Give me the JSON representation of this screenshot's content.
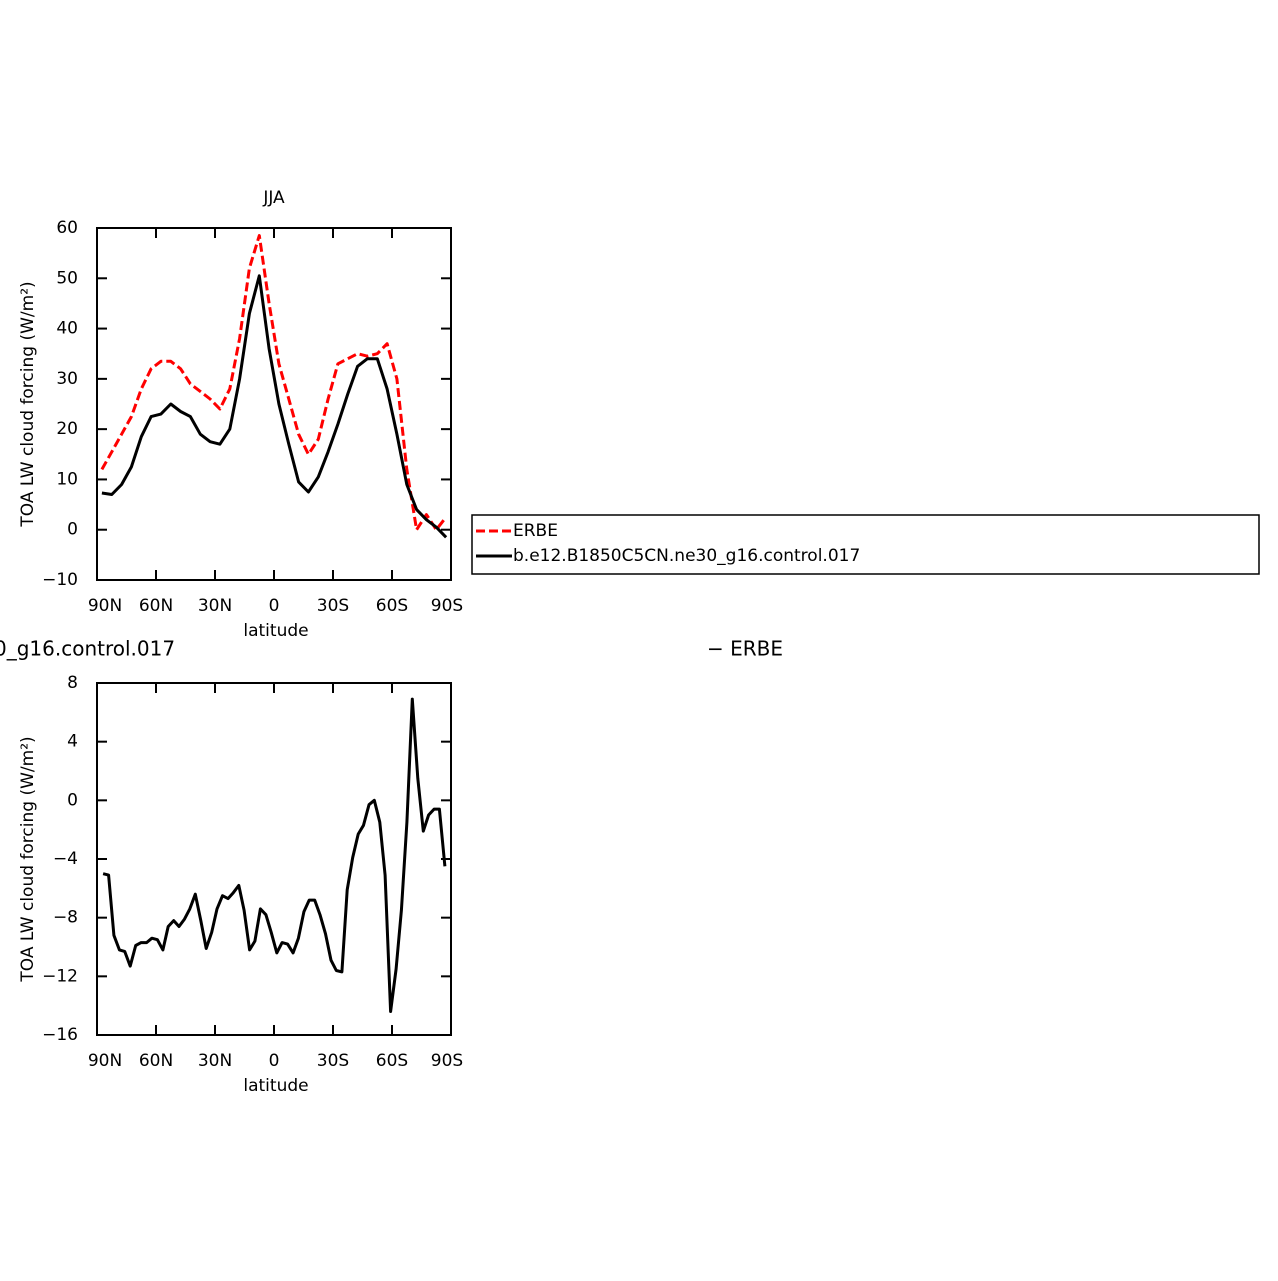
{
  "chart_data": [
    {
      "type": "line",
      "title": "JJA",
      "xlabel": "latitude",
      "ylabel": "TOA LW cloud forcing (W/m²)",
      "x": [
        87.5,
        82.5,
        77.5,
        72.5,
        67.5,
        62.5,
        57.5,
        52.5,
        47.5,
        42.5,
        37.5,
        32.5,
        27.5,
        22.5,
        17.5,
        12.5,
        7.5,
        2.5,
        -2.5,
        -7.5,
        -12.5,
        -17.5,
        -22.5,
        -27.5,
        -32.5,
        -37.5,
        -42.5,
        -47.5,
        -52.5,
        -57.5,
        -62.5,
        -67.5,
        -72.5,
        -77.5,
        -82.5,
        -87.5
      ],
      "series": [
        {
          "name": "ERBE",
          "color": "#ff0000",
          "dash": true,
          "values": [
            12,
            15.5,
            19,
            22.5,
            28,
            32,
            33.5,
            33.5,
            32,
            29,
            27.5,
            26,
            24,
            28,
            38,
            52,
            58.5,
            45,
            33,
            26,
            19,
            15,
            18,
            26,
            33,
            34,
            35,
            34.5,
            35,
            37,
            30,
            12,
            0,
            3,
            0,
            2.5
          ]
        },
        {
          "name": "b.e12.B1850C5CN.ne30_g16.control.017",
          "color": "#000000",
          "dash": false,
          "values": [
            7.3,
            7,
            9,
            12.5,
            18.5,
            22.5,
            23,
            25,
            23.5,
            22.5,
            19,
            17.5,
            17,
            20,
            30,
            43,
            50.5,
            36,
            25,
            17,
            9.5,
            7.5,
            10.5,
            15.5,
            21,
            27,
            32.5,
            34,
            34,
            28,
            19,
            9,
            4,
            2,
            0.5,
            -1.5
          ]
        }
      ],
      "xlim": [
        90,
        -90
      ],
      "xticks": [
        {
          "value": 90,
          "label": "90N"
        },
        {
          "value": 60,
          "label": "60N"
        },
        {
          "value": 30,
          "label": "30N"
        },
        0,
        {
          "value": -30,
          "label": "30S"
        },
        {
          "value": -60,
          "label": "60S"
        },
        {
          "value": -90,
          "label": "90S"
        }
      ],
      "ylim": [
        -10,
        60
      ],
      "yticks": [
        {
          "value": -10,
          "label": "−10"
        },
        0,
        10,
        20,
        30,
        40,
        50,
        60
      ],
      "legend": "right"
    },
    {
      "type": "line",
      "title": [
        "0_g16.control.017",
        "− ERBE"
      ],
      "xlabel": "latitude",
      "ylabel": "TOA LW cloud forcing (W/m²)",
      "x": [
        86.9,
        84.1,
        81.4,
        78.6,
        75.9,
        73.1,
        70.3,
        67.6,
        64.8,
        62.1,
        59.3,
        56.5,
        53.8,
        51.0,
        48.3,
        45.5,
        42.8,
        40.0,
        37.2,
        34.5,
        31.7,
        29.0,
        26.2,
        23.4,
        20.7,
        17.9,
        15.2,
        12.4,
        9.7,
        6.9,
        4.1,
        1.4,
        -1.4,
        -4.1,
        -6.9,
        -9.7,
        -12.4,
        -15.2,
        -17.9,
        -20.7,
        -23.4,
        -26.2,
        -29.0,
        -31.7,
        -34.5,
        -37.2,
        -40.0,
        -42.8,
        -45.5,
        -48.3,
        -51.0,
        -53.8,
        -56.5,
        -59.3,
        -62.1,
        -64.8,
        -67.6,
        -70.3,
        -73.1,
        -75.9,
        -78.6,
        -81.4,
        -84.1,
        -86.9
      ],
      "series": [
        {
          "color": "#000000",
          "dash": false,
          "values": [
            -5,
            -5.1,
            -9.2,
            -10.2,
            -10.3,
            -11.3,
            -9.9,
            -9.7,
            -9.7,
            -9.4,
            -9.5,
            -10.2,
            -8.6,
            -8.2,
            -8.6,
            -8.1,
            -7.4,
            -6.4,
            -8.2,
            -10.1,
            -9.0,
            -7.4,
            -6.5,
            -6.7,
            -6.3,
            -5.8,
            -7.5,
            -10.2,
            -9.6,
            -7.4,
            -7.8,
            -9.0,
            -10.4,
            -9.7,
            -9.8,
            -10.4,
            -9.4,
            -7.6,
            -6.8,
            -6.8,
            -7.8,
            -9.1,
            -10.9,
            -11.6,
            -11.7,
            -6.1,
            -3.9,
            -2.3,
            -1.7,
            -0.3,
            0.0,
            -1.5,
            -5.1,
            -14.4,
            -11.5,
            -7.5,
            -1.5,
            6.9,
            1.5,
            -2.1,
            -1.0,
            -0.6,
            -0.6,
            -4.5
          ]
        }
      ],
      "xlim": [
        90,
        -90
      ],
      "xticks": [
        {
          "value": 90,
          "label": "90N"
        },
        {
          "value": 60,
          "label": "60N"
        },
        {
          "value": 30,
          "label": "30N"
        },
        0,
        {
          "value": -30,
          "label": "30S"
        },
        {
          "value": -60,
          "label": "60S"
        },
        {
          "value": -90,
          "label": "90S"
        }
      ],
      "ylim": [
        -16,
        8
      ],
      "yticks": [
        {
          "value": -16,
          "label": "−16"
        },
        {
          "value": -12,
          "label": "−12"
        },
        {
          "value": -8,
          "label": "−8"
        },
        {
          "value": -4,
          "label": "−4"
        },
        0,
        4,
        8
      ]
    }
  ]
}
